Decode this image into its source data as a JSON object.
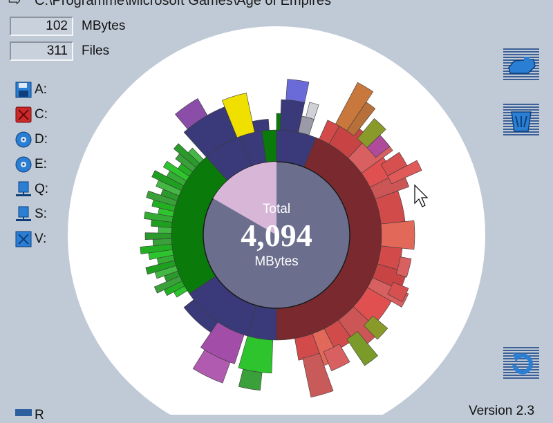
{
  "path": {
    "text": "C:\\Programme\\Microsoft Games\\Age of Empires"
  },
  "stats": {
    "size_value": "102",
    "size_unit": "MBytes",
    "files_value": "311",
    "files_unit": "Files"
  },
  "drives": [
    {
      "label": "A:",
      "icon": "floppy-icon",
      "color": "#2a7fd4"
    },
    {
      "label": "C:",
      "icon": "hard-disk-icon",
      "color": "#cc2a2a"
    },
    {
      "label": "D:",
      "icon": "cd-drive-icon",
      "color": "#2a7fd4"
    },
    {
      "label": "E:",
      "icon": "cd-drive-icon",
      "color": "#2a7fd4"
    },
    {
      "label": "Q:",
      "icon": "network-drive-icon",
      "color": "#2a7fd4"
    },
    {
      "label": "S:",
      "icon": "network-drive-icon",
      "color": "#2a7fd4"
    },
    {
      "label": "V:",
      "icon": "network-drive-icon",
      "color": "#2a7fd4"
    }
  ],
  "center": {
    "total_label": "Total",
    "total_value": "4,094",
    "total_unit": "MBytes"
  },
  "side_buttons": [
    {
      "name": "open-drive-button",
      "icon": "drive-icon"
    },
    {
      "name": "trash-button",
      "icon": "trash-icon"
    },
    {
      "name": "refresh-button",
      "icon": "refresh-icon"
    }
  ],
  "footer": {
    "version": "Version 2.3",
    "partial_label": "R"
  },
  "colors": {
    "background": "#c0cad6",
    "center_disk": "#6c6e8e",
    "free_space": "#d8b6d8",
    "ring_red": "#7a2a2e",
    "ring_green": "#0a7a0a",
    "ring_navy": "#3a3a7a",
    "white_disk": "#ffffff"
  }
}
